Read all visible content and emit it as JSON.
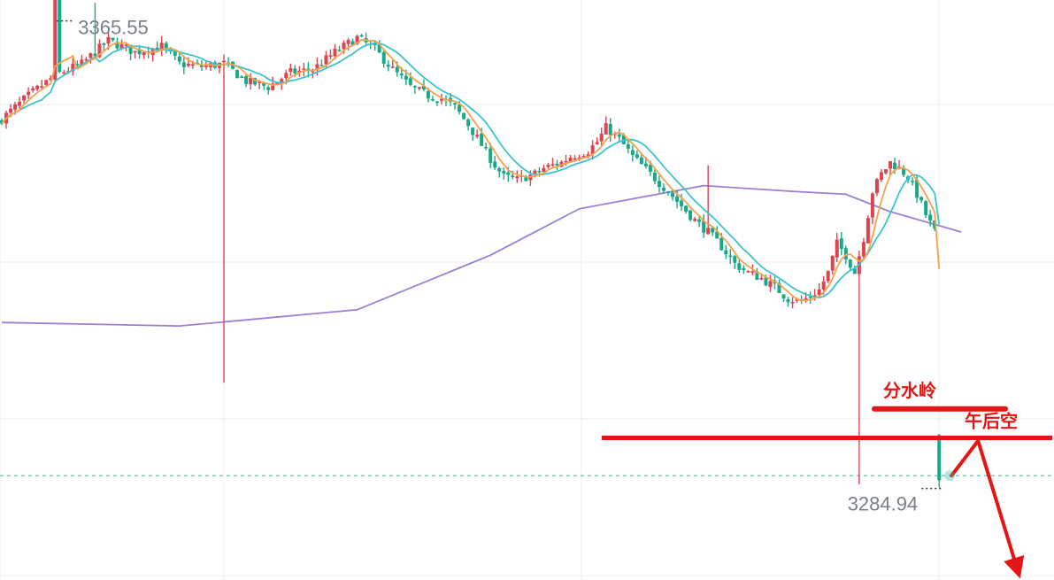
{
  "colors": {
    "up": "#dc4550",
    "down": "#17a98a",
    "ma_fast": "#f4a34c",
    "ma_mid": "#3cc3d0",
    "ma_slow": "#9b7fd4",
    "annotation": "#e61414",
    "grid": "#ececec",
    "label_text": "#7a7f87",
    "dashed_level": "#3cb39b"
  },
  "chart_data": {
    "type": "candlestick",
    "high_label": "3365.55",
    "low_label": "3284.94",
    "high_value": 3365.55,
    "low_value": 3284.94,
    "y_range": [
      3269,
      3369
    ],
    "grid": true,
    "current_level": 3287.0,
    "annotations": [
      {
        "text": "分水岭",
        "level": 3298.5
      },
      {
        "text": "午后空",
        "level": 3293.5
      }
    ],
    "arrow": {
      "from": 3287.0,
      "peak": 3293.0,
      "to": 3271.0
    }
  }
}
